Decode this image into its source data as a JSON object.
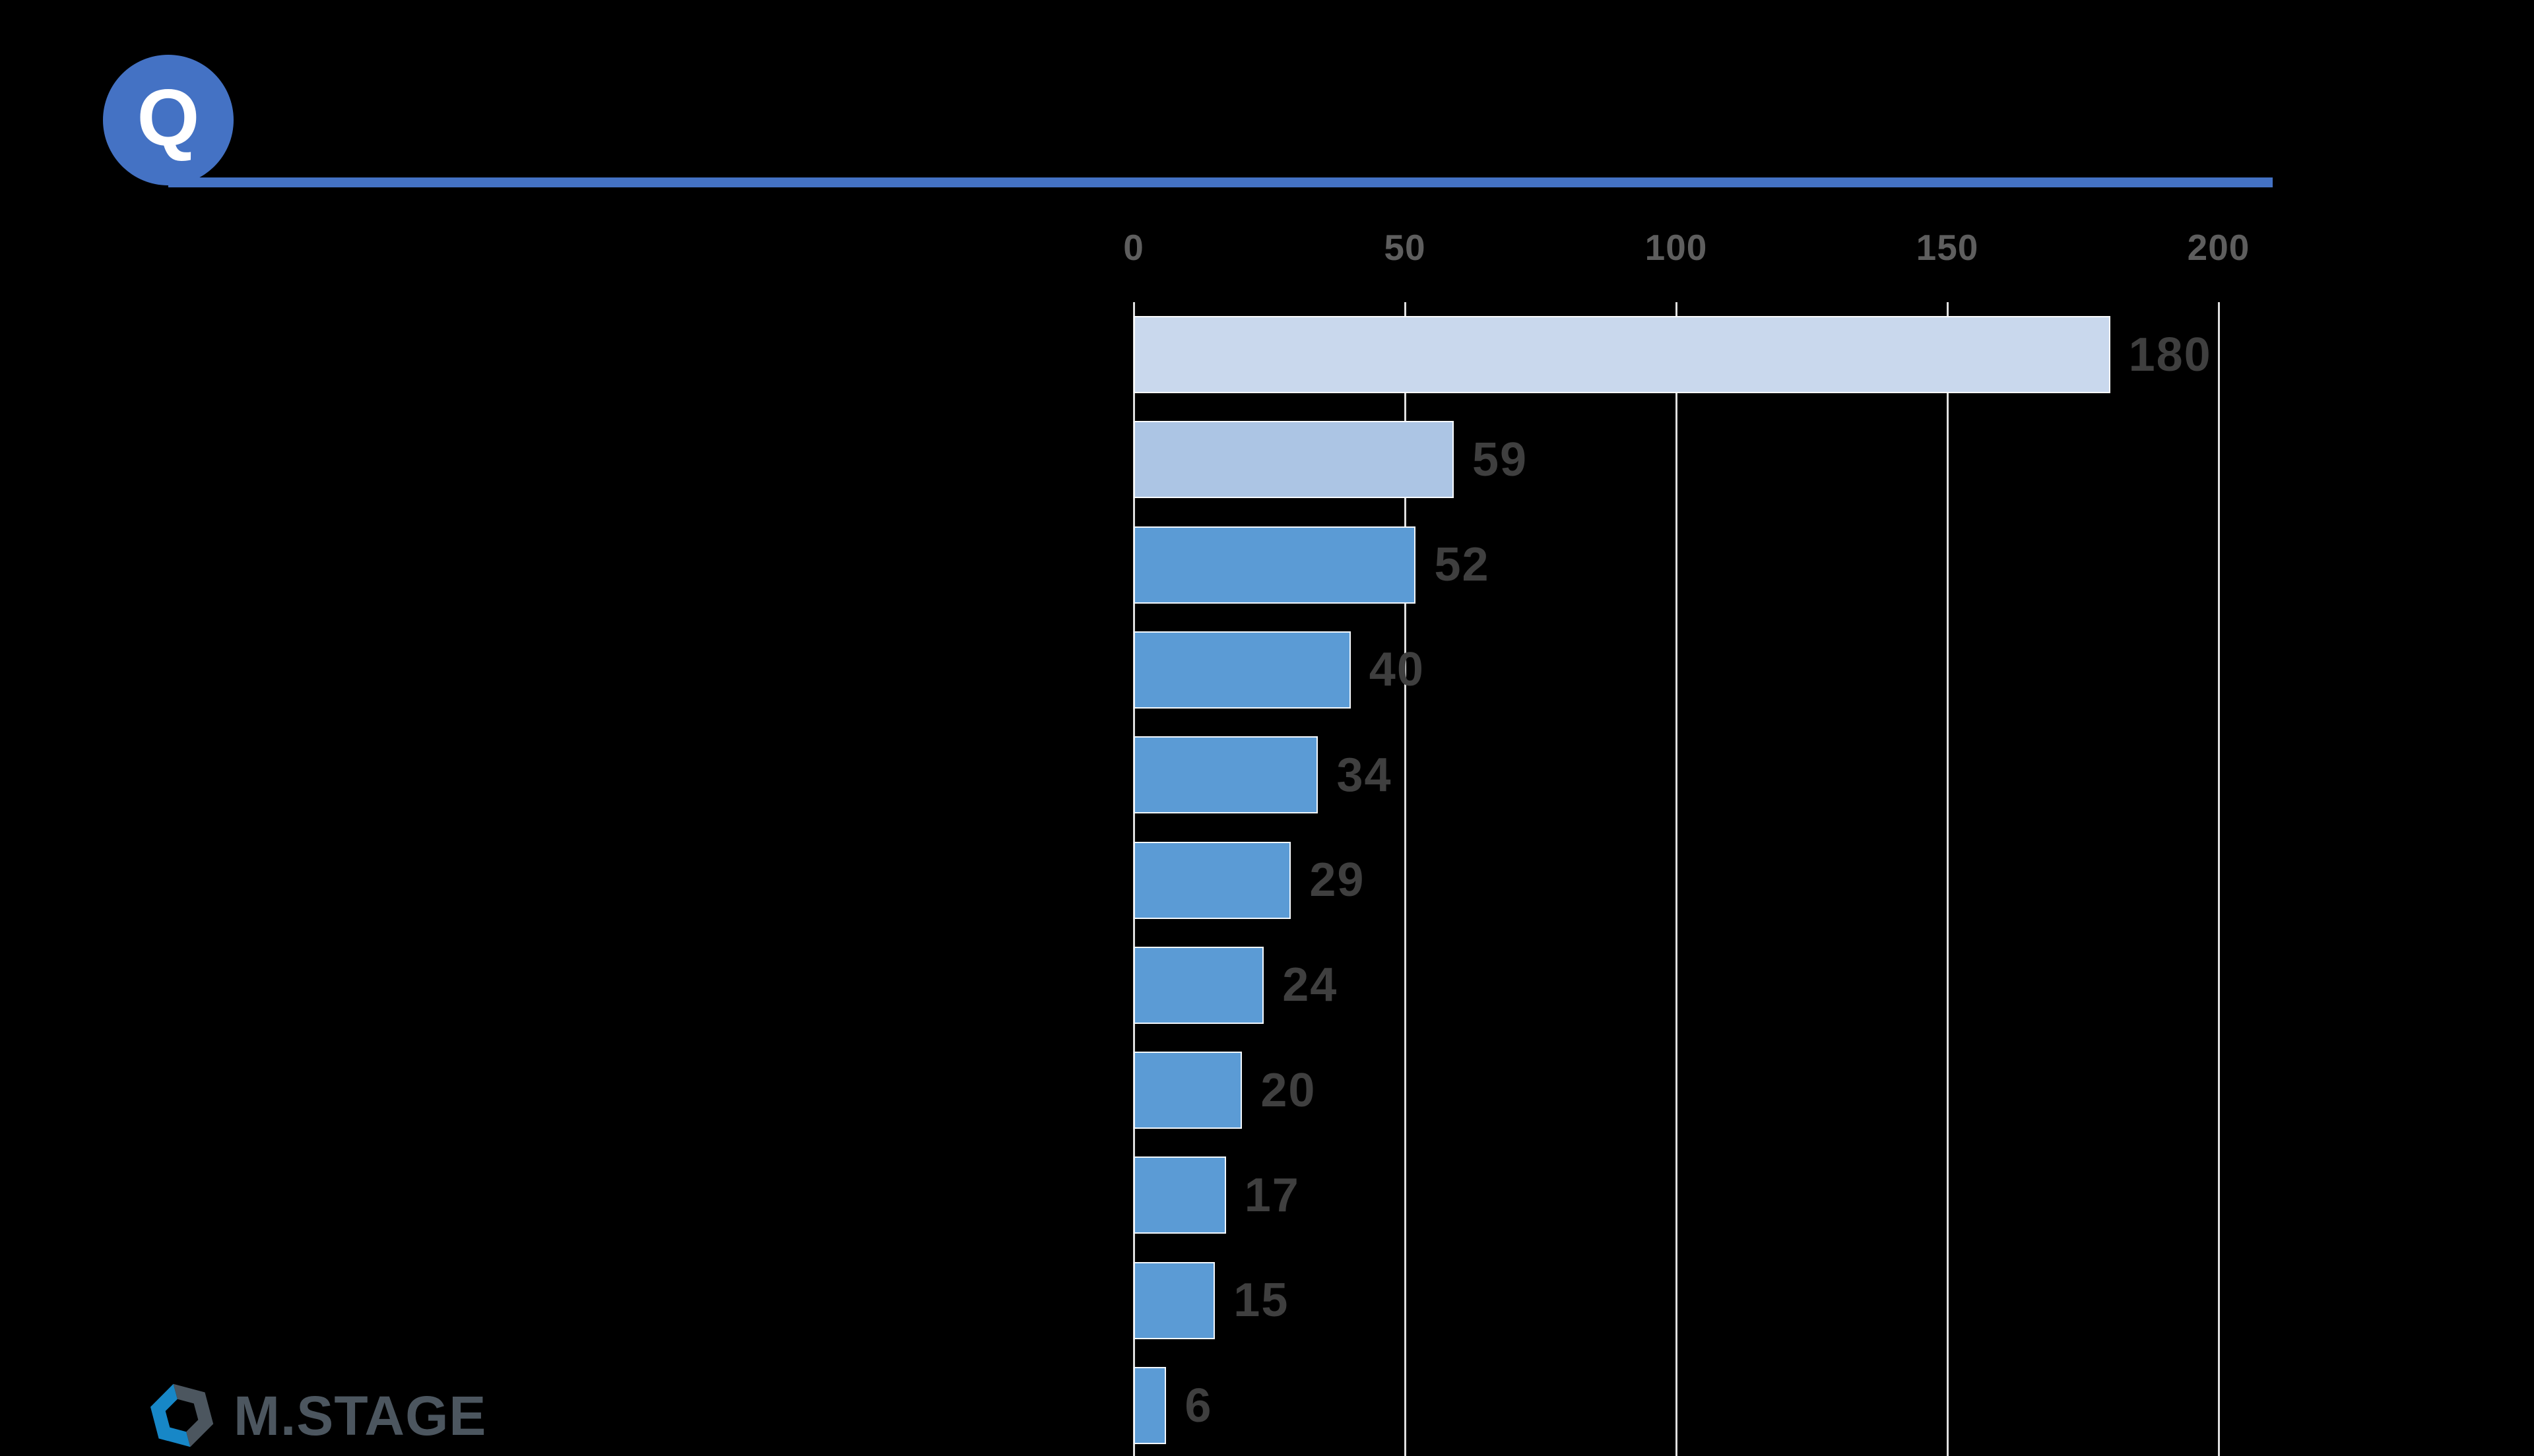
{
  "header": {
    "badge_label": "Q",
    "accent_color": "#4472C4"
  },
  "chart_data": {
    "type": "bar",
    "orientation": "horizontal",
    "title": "",
    "categories": [
      "",
      "",
      "",
      "",
      "",
      "",
      "",
      "",
      "",
      "",
      ""
    ],
    "values": [
      180,
      59,
      52,
      40,
      34,
      29,
      24,
      20,
      17,
      15,
      6
    ],
    "bar_colors": [
      "#C9D8ED",
      "#ACC5E4",
      "#5B9BD5",
      "#5B9BD5",
      "#5B9BD5",
      "#5B9BD5",
      "#5B9BD5",
      "#5B9BD5",
      "#5B9BD5",
      "#5B9BD5",
      "#5B9BD5"
    ],
    "x_ticks": [
      0,
      50,
      100,
      150,
      200
    ],
    "xlim": [
      0,
      210
    ],
    "grid": true,
    "legend": false,
    "gridline_color": "#DFDFDF",
    "tick_label_color": "#5E5E5E",
    "value_label_color": "#3F3F3F",
    "bar_border_color": "#FFFFFF"
  },
  "footer": {
    "logo_text": "M.STAGE",
    "logo_colors": {
      "blue": "#1787C7",
      "slate": "#4C565F"
    }
  }
}
